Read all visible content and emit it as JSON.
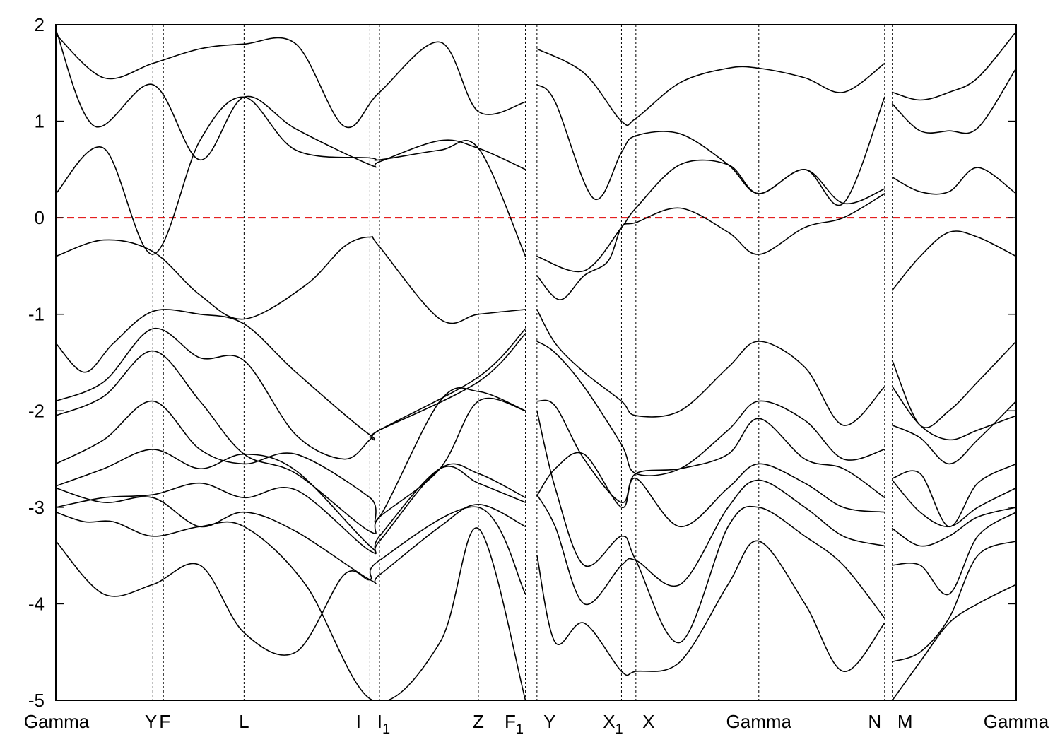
{
  "chart_data": {
    "type": "line",
    "title": "",
    "xlabel": "",
    "ylabel": "",
    "ylim": [
      -5,
      2
    ],
    "yticks": [
      2,
      1,
      0,
      -1,
      -2,
      -3,
      -4,
      -5
    ],
    "ytick_labels": [
      "2",
      "1",
      "0",
      "-1",
      "-2",
      "-3",
      "-4",
      "-5"
    ],
    "xlim": [
      0,
      1
    ],
    "kpoints": [
      {
        "label": "Gamma",
        "sub": "",
        "x": 0.0
      },
      {
        "label": "Y",
        "sub": "",
        "x": 0.101
      },
      {
        "label": "F",
        "sub": "",
        "x": 0.112
      },
      {
        "label": "L",
        "sub": "",
        "x": 0.196
      },
      {
        "label": "I",
        "sub": "",
        "x": 0.327
      },
      {
        "label": "I",
        "sub": "1",
        "x": 0.337
      },
      {
        "label": "Z",
        "sub": "",
        "x": 0.44
      },
      {
        "label": "F",
        "sub": "1",
        "x": 0.489
      },
      {
        "label": "Y",
        "sub": "",
        "x": 0.501
      },
      {
        "label": "X",
        "sub": "1",
        "x": 0.589
      },
      {
        "label": "X",
        "sub": "",
        "x": 0.604
      },
      {
        "label": "Gamma",
        "sub": "",
        "x": 0.732
      },
      {
        "label": "N",
        "sub": "",
        "x": 0.863
      },
      {
        "label": "M",
        "sub": "",
        "x": 0.871
      },
      {
        "label": "Gamma",
        "sub": "",
        "x": 1.0
      }
    ],
    "fermi_level": 0,
    "legend": "none",
    "grid": "vertical dotted lines at k-points",
    "colors": {
      "bands": "#000000",
      "fermi": "#e00000"
    },
    "series": [
      {
        "x": [
          0.0,
          0.05,
          0.101,
          0.15,
          0.196,
          0.26,
          0.3,
          0.327,
          0.337,
          0.4,
          0.44,
          0.489
        ],
        "y": [
          -0.4,
          -0.23,
          -0.35,
          -0.8,
          -1.05,
          -0.7,
          -0.3,
          -0.2,
          -0.3,
          -1.05,
          -1.0,
          -0.95
        ]
      },
      {
        "x": [
          0.0,
          0.05,
          0.101,
          0.15,
          0.196,
          0.25,
          0.327,
          0.337,
          0.4,
          0.44,
          0.489
        ],
        "y": [
          0.25,
          0.72,
          -0.38,
          0.8,
          1.25,
          0.7,
          0.62,
          0.6,
          0.7,
          0.72,
          -0.4
        ]
      },
      {
        "x": [
          0.0,
          0.04,
          0.101,
          0.15,
          0.196,
          0.25,
          0.327,
          0.337,
          0.4,
          0.44,
          0.489
        ],
        "y": [
          1.95,
          0.95,
          1.38,
          0.6,
          1.25,
          0.92,
          0.55,
          0.58,
          0.8,
          0.72,
          0.5
        ]
      },
      {
        "x": [
          0.0,
          0.05,
          0.101,
          0.15,
          0.196,
          0.25,
          0.3,
          0.337,
          0.4,
          0.44,
          0.489
        ],
        "y": [
          1.9,
          1.45,
          1.6,
          1.75,
          1.8,
          1.8,
          0.95,
          1.3,
          1.82,
          1.1,
          1.2
        ]
      },
      {
        "x": [
          0.0,
          0.03,
          0.06,
          0.101,
          0.15,
          0.196,
          0.25,
          0.327,
          0.337,
          0.44,
          0.489
        ],
        "y": [
          -1.3,
          -1.6,
          -1.3,
          -0.97,
          -1.0,
          -1.1,
          -1.6,
          -2.25,
          -2.2,
          -1.7,
          -1.2
        ]
      },
      {
        "x": [
          0.0,
          0.05,
          0.101,
          0.15,
          0.196,
          0.25,
          0.3,
          0.327,
          0.337,
          0.44,
          0.489
        ],
        "y": [
          -1.9,
          -1.7,
          -1.15,
          -1.45,
          -1.48,
          -2.25,
          -2.5,
          -2.3,
          -2.2,
          -1.65,
          -1.15
        ]
      },
      {
        "x": [
          0.0,
          0.05,
          0.101,
          0.15,
          0.196,
          0.25,
          0.327,
          0.337,
          0.4,
          0.44,
          0.489
        ],
        "y": [
          -2.05,
          -1.85,
          -1.38,
          -1.9,
          -2.45,
          -2.65,
          -3.25,
          -3.1,
          -2.6,
          -1.9,
          -2.0
        ]
      },
      {
        "x": [
          0.0,
          0.05,
          0.101,
          0.15,
          0.196,
          0.25,
          0.327,
          0.337,
          0.4,
          0.44,
          0.489
        ],
        "y": [
          -2.55,
          -2.3,
          -1.9,
          -2.4,
          -2.55,
          -2.45,
          -2.9,
          -3.1,
          -1.9,
          -1.8,
          -2.0
        ]
      },
      {
        "x": [
          0.0,
          0.05,
          0.101,
          0.15,
          0.196,
          0.25,
          0.327,
          0.337,
          0.4,
          0.44,
          0.489
        ],
        "y": [
          -2.78,
          -2.6,
          -2.4,
          -2.6,
          -2.45,
          -2.62,
          -3.4,
          -3.35,
          -2.6,
          -2.65,
          -2.9
        ]
      },
      {
        "x": [
          0.0,
          0.05,
          0.101,
          0.15,
          0.196,
          0.25,
          0.327,
          0.337,
          0.4,
          0.44,
          0.489
        ],
        "y": [
          -3.0,
          -2.9,
          -2.87,
          -2.75,
          -2.9,
          -2.82,
          -3.45,
          -3.3,
          -2.6,
          -2.75,
          -2.95
        ]
      },
      {
        "x": [
          0.0,
          0.05,
          0.101,
          0.15,
          0.196,
          0.25,
          0.327,
          0.337,
          0.4,
          0.44,
          0.489
        ],
        "y": [
          -2.8,
          -2.95,
          -2.9,
          -3.2,
          -3.05,
          -3.25,
          -3.75,
          -3.7,
          -3.2,
          -2.97,
          -3.2
        ]
      },
      {
        "x": [
          0.0,
          0.05,
          0.101,
          0.15,
          0.196,
          0.25,
          0.3,
          0.327,
          0.337,
          0.44,
          0.489
        ],
        "y": [
          -3.35,
          -3.9,
          -3.8,
          -3.6,
          -4.3,
          -4.5,
          -3.7,
          -3.75,
          -3.55,
          -3.0,
          -3.9
        ]
      },
      {
        "x": [
          0.0,
          0.03,
          0.06,
          0.101,
          0.15,
          0.196,
          0.26,
          0.33,
          0.4,
          0.44,
          0.489
        ],
        "y": [
          -3.05,
          -3.15,
          -3.15,
          -3.3,
          -3.2,
          -3.2,
          -3.8,
          -5.0,
          -4.4,
          -3.22,
          -5.0
        ]
      },
      {
        "x": [
          0.501,
          0.55,
          0.589,
          0.604,
          0.65,
          0.7,
          0.732,
          0.78,
          0.82,
          0.863
        ],
        "y": [
          -0.4,
          -0.55,
          -0.1,
          0.1,
          0.55,
          0.55,
          0.25,
          0.5,
          0.15,
          0.3
        ]
      },
      {
        "x": [
          0.501,
          0.525,
          0.55,
          0.575,
          0.589,
          0.604,
          0.65,
          0.7,
          0.732,
          0.78,
          0.82,
          0.863
        ],
        "y": [
          -0.6,
          -0.85,
          -0.6,
          -0.45,
          -0.1,
          -0.05,
          0.1,
          -0.15,
          -0.38,
          -0.1,
          0.0,
          0.25
        ]
      },
      {
        "x": [
          0.501,
          0.52,
          0.56,
          0.589,
          0.604,
          0.65,
          0.7,
          0.732,
          0.78,
          0.82,
          0.863
        ],
        "y": [
          1.38,
          1.2,
          0.2,
          0.68,
          0.85,
          0.87,
          0.55,
          0.25,
          0.5,
          0.15,
          1.25
        ]
      },
      {
        "x": [
          0.501,
          0.55,
          0.589,
          0.604,
          0.65,
          0.7,
          0.732,
          0.78,
          0.82,
          0.863
        ],
        "y": [
          1.75,
          1.5,
          1.0,
          1.03,
          1.4,
          1.55,
          1.55,
          1.45,
          1.3,
          1.6
        ]
      },
      {
        "x": [
          0.501,
          0.52,
          0.55,
          0.589,
          0.604,
          0.65,
          0.7,
          0.732,
          0.78,
          0.82,
          0.863
        ],
        "y": [
          -0.95,
          -1.3,
          -1.6,
          -1.9,
          -2.05,
          -2.0,
          -1.55,
          -1.28,
          -1.55,
          -2.15,
          -1.75
        ]
      },
      {
        "x": [
          0.501,
          0.52,
          0.55,
          0.589,
          0.604,
          0.65,
          0.7,
          0.732,
          0.78,
          0.82,
          0.863
        ],
        "y": [
          -1.28,
          -1.4,
          -1.75,
          -2.35,
          -2.65,
          -2.6,
          -2.2,
          -1.9,
          -2.1,
          -2.5,
          -2.4
        ]
      },
      {
        "x": [
          0.501,
          0.52,
          0.55,
          0.589,
          0.604,
          0.65,
          0.7,
          0.732,
          0.78,
          0.82,
          0.863
        ],
        "y": [
          -1.9,
          -1.95,
          -2.5,
          -2.95,
          -2.65,
          -2.6,
          -2.45,
          -2.08,
          -2.5,
          -2.6,
          -2.9
        ]
      },
      {
        "x": [
          0.501,
          0.52,
          0.55,
          0.589,
          0.604,
          0.65,
          0.7,
          0.732,
          0.78,
          0.82,
          0.863
        ],
        "y": [
          -2.88,
          -2.6,
          -2.45,
          -3.0,
          -2.7,
          -3.2,
          -2.8,
          -2.55,
          -2.75,
          -3.0,
          -3.05
        ]
      },
      {
        "x": [
          0.501,
          0.52,
          0.55,
          0.589,
          0.604,
          0.65,
          0.7,
          0.732,
          0.78,
          0.82,
          0.863
        ],
        "y": [
          -2.87,
          -3.2,
          -4.0,
          -3.6,
          -3.55,
          -3.8,
          -3.0,
          -2.72,
          -3.0,
          -3.3,
          -3.4
        ]
      },
      {
        "x": [
          0.501,
          0.52,
          0.55,
          0.589,
          0.604,
          0.65,
          0.7,
          0.732,
          0.78,
          0.82,
          0.863
        ],
        "y": [
          -2.0,
          -2.8,
          -3.6,
          -3.3,
          -3.55,
          -4.4,
          -3.2,
          -3.0,
          -3.3,
          -3.6,
          -4.15
        ]
      },
      {
        "x": [
          0.501,
          0.52,
          0.55,
          0.589,
          0.604,
          0.65,
          0.7,
          0.732,
          0.78,
          0.82,
          0.863
        ],
        "y": [
          -3.5,
          -4.4,
          -4.2,
          -4.7,
          -4.7,
          -4.6,
          -3.8,
          -3.35,
          -4.0,
          -4.7,
          -4.2
        ]
      },
      {
        "x": [
          0.871,
          0.9,
          0.93,
          0.96,
          1.0
        ],
        "y": [
          -0.75,
          -0.4,
          -0.15,
          -0.2,
          -0.4
        ]
      },
      {
        "x": [
          0.871,
          0.9,
          0.93,
          0.96,
          1.0
        ],
        "y": [
          0.42,
          0.27,
          0.27,
          0.52,
          0.25
        ]
      },
      {
        "x": [
          0.871,
          0.9,
          0.93,
          0.96,
          1.0
        ],
        "y": [
          1.18,
          0.9,
          0.9,
          0.93,
          1.55
        ]
      },
      {
        "x": [
          0.871,
          0.9,
          0.93,
          0.96,
          1.0
        ],
        "y": [
          1.3,
          1.22,
          1.3,
          1.45,
          1.93
        ]
      },
      {
        "x": [
          0.871,
          0.9,
          0.93,
          0.96,
          1.0
        ],
        "y": [
          -1.48,
          -2.15,
          -2.0,
          -1.7,
          -1.28
        ]
      },
      {
        "x": [
          0.871,
          0.9,
          0.93,
          0.96,
          1.0
        ],
        "y": [
          -1.75,
          -2.15,
          -2.3,
          -2.2,
          -2.05
        ]
      },
      {
        "x": [
          0.871,
          0.9,
          0.93,
          0.96,
          1.0
        ],
        "y": [
          -2.15,
          -2.28,
          -2.55,
          -2.3,
          -1.9
        ]
      },
      {
        "x": [
          0.871,
          0.9,
          0.93,
          0.96,
          1.0
        ],
        "y": [
          -2.7,
          -2.65,
          -3.2,
          -2.75,
          -2.55
        ]
      },
      {
        "x": [
          0.871,
          0.9,
          0.93,
          0.96,
          1.0
        ],
        "y": [
          -2.72,
          -3.05,
          -3.2,
          -3.0,
          -2.8
        ]
      },
      {
        "x": [
          0.871,
          0.9,
          0.93,
          0.96,
          1.0
        ],
        "y": [
          -3.22,
          -3.4,
          -3.3,
          -3.1,
          -3.0
        ]
      },
      {
        "x": [
          0.871,
          0.9,
          0.93,
          0.96,
          1.0
        ],
        "y": [
          -3.6,
          -3.6,
          -3.9,
          -3.3,
          -3.05
        ]
      },
      {
        "x": [
          0.871,
          0.9,
          0.93,
          0.96,
          1.0
        ],
        "y": [
          -4.6,
          -4.5,
          -4.15,
          -3.5,
          -3.35
        ]
      },
      {
        "x": [
          0.871,
          0.9,
          0.93,
          0.96,
          1.0
        ],
        "y": [
          -5.0,
          -4.6,
          -4.2,
          -4.0,
          -3.8
        ]
      }
    ]
  }
}
